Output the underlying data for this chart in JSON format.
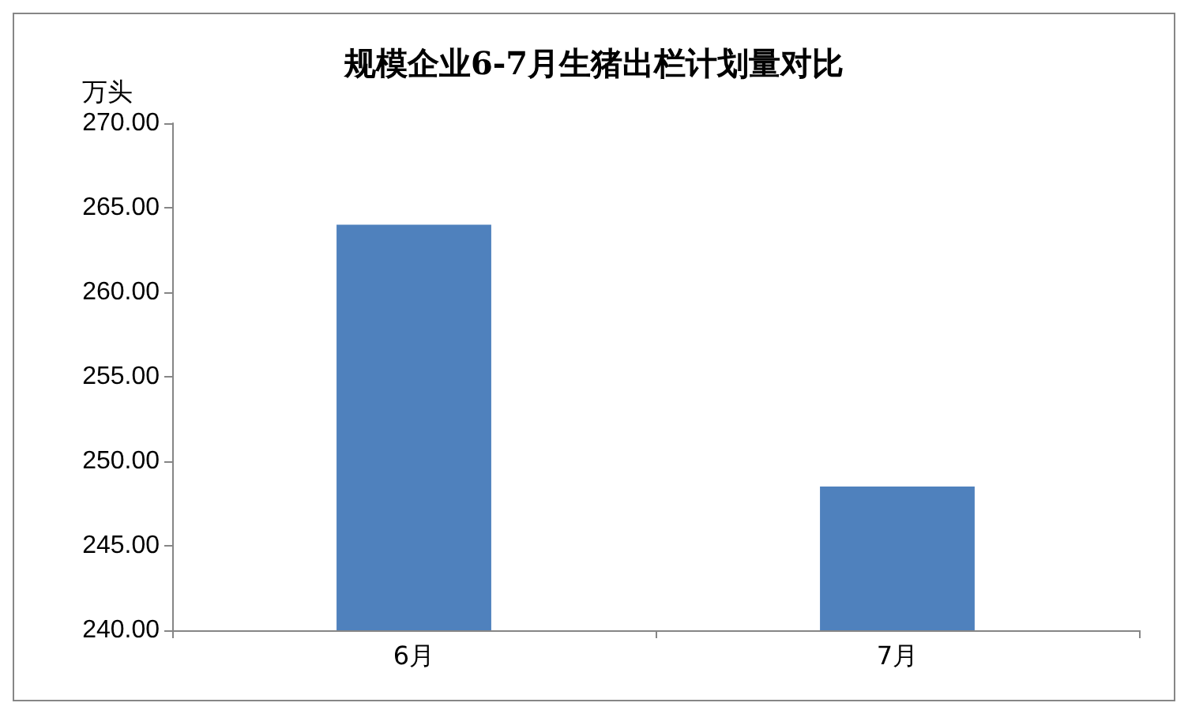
{
  "chart_data": {
    "type": "bar",
    "title": "规模企业6-7月生猪出栏计划量对比",
    "ylabel": "万头",
    "categories": [
      "6月",
      "7月"
    ],
    "values": [
      264.0,
      248.5
    ],
    "color": "#4f81bd",
    "ylim": [
      240,
      270
    ],
    "yticks": [
      {
        "value": 240,
        "label": "240.00"
      },
      {
        "value": 245,
        "label": "245.00"
      },
      {
        "value": 250,
        "label": "250.00"
      },
      {
        "value": 255,
        "label": "255.00"
      },
      {
        "value": 260,
        "label": "260.00"
      },
      {
        "value": 265,
        "label": "265.00"
      },
      {
        "value": 270,
        "label": "270.00"
      }
    ],
    "grid": false
  }
}
